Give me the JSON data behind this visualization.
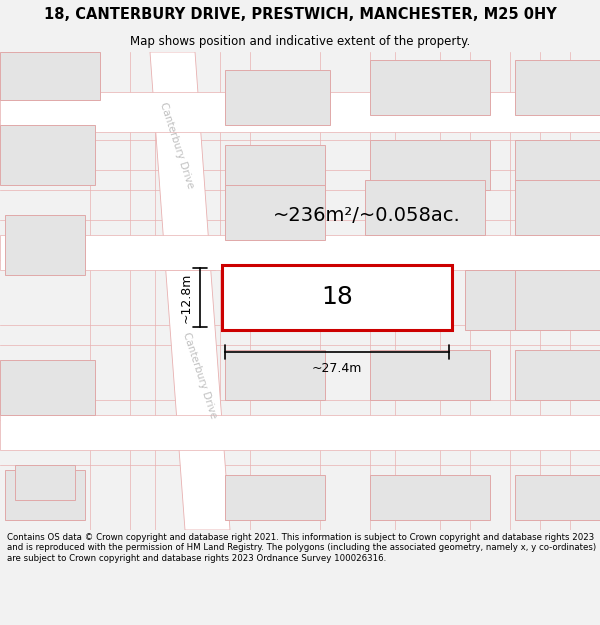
{
  "title_line1": "18, CANTERBURY DRIVE, PRESTWICH, MANCHESTER, M25 0HY",
  "title_line2": "Map shows position and indicative extent of the property.",
  "footer_text": "Contains OS data © Crown copyright and database right 2021. This information is subject to Crown copyright and database rights 2023 and is reproduced with the permission of HM Land Registry. The polygons (including the associated geometry, namely x, y co-ordinates) are subject to Crown copyright and database rights 2023 Ordnance Survey 100026316.",
  "bg_color": "#f2f2f2",
  "map_bg": "#f5f5f5",
  "road_fill": "#ffffff",
  "road_edge": "#e8b0b0",
  "building_fill": "#e4e4e4",
  "building_edge": "#e0a8a8",
  "highlight_fill": "#ffffff",
  "highlight_edge": "#cc0000",
  "area_label": "~236m²/~0.058ac.",
  "width_label": "~27.4m",
  "height_label": "~12.8m",
  "property_number": "18",
  "street_label": "Canterbury Drive",
  "title_fontsize": 10.5,
  "subtitle_fontsize": 8.5,
  "footer_fontsize": 6.2,
  "prop_label_fontsize": 18,
  "dim_fontsize": 9,
  "area_fontsize": 14
}
